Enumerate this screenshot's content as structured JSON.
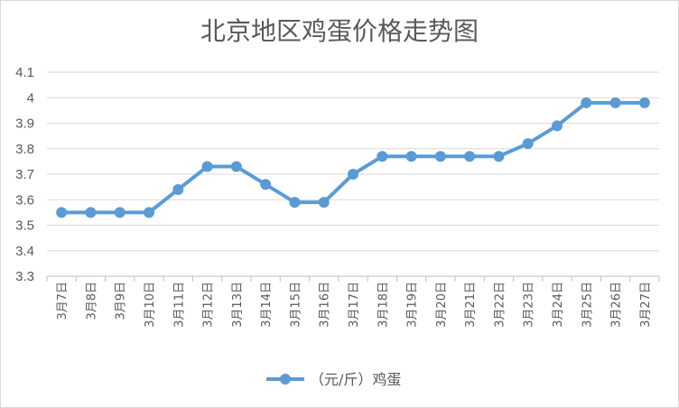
{
  "chart_data": {
    "type": "line",
    "title": "北京地区鸡蛋价格走势图",
    "categories": [
      "3月7日",
      "3月8日",
      "3月9日",
      "3月10日",
      "3月11日",
      "3月12日",
      "3月13日",
      "3月14日",
      "3月15日",
      "3月16日",
      "3月17日",
      "3月18日",
      "3月19日",
      "3月20日",
      "3月21日",
      "3月22日",
      "3月23日",
      "3月24日",
      "3月25日",
      "3月26日",
      "3月27日"
    ],
    "series": [
      {
        "name": "（元/斤）鸡蛋",
        "color": "#5b9bd5",
        "values": [
          3.55,
          3.55,
          3.55,
          3.55,
          3.64,
          3.73,
          3.73,
          3.66,
          3.59,
          3.59,
          3.7,
          3.77,
          3.77,
          3.77,
          3.77,
          3.77,
          3.82,
          3.89,
          3.98,
          3.98,
          3.98
        ]
      }
    ],
    "ylim": [
      3.3,
      4.1
    ],
    "yticks": [
      "3.3",
      "3.4",
      "3.5",
      "3.6",
      "3.7",
      "3.8",
      "3.9",
      "4",
      "4.1"
    ],
    "grid": true,
    "legend": "bottom"
  }
}
